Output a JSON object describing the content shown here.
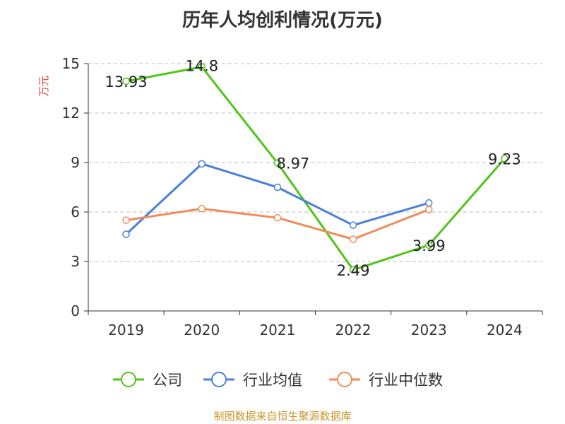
{
  "chart_data": {
    "type": "line",
    "title": "历年人均创利情况(万元)",
    "ylabel": "万元",
    "xlabel": "",
    "categories": [
      "2019",
      "2020",
      "2021",
      "2022",
      "2023",
      "2024"
    ],
    "ylim": [
      0,
      15
    ],
    "yticks": [
      0,
      3,
      6,
      9,
      12,
      15
    ],
    "grid": true,
    "legend_position": "bottom",
    "series": [
      {
        "name": "公司",
        "color": "#52c41a",
        "values": [
          13.93,
          14.8,
          8.97,
          2.49,
          3.99,
          9.23
        ],
        "labels": [
          "13.93",
          "14.8",
          "8.97",
          "2.49",
          "3.99",
          "9.23"
        ]
      },
      {
        "name": "行业均值",
        "color": "#4a7fdc",
        "values": [
          4.65,
          8.92,
          7.5,
          5.2,
          6.55,
          null
        ]
      },
      {
        "name": "行业中位数",
        "color": "#f08c5a",
        "values": [
          5.5,
          6.2,
          5.65,
          4.35,
          6.15,
          null
        ]
      }
    ]
  },
  "source": "制图数据来自恒生聚源数据库",
  "colors": {
    "axis": "#333333",
    "grid": "#bbbbbb",
    "ylabel": "#e8453c"
  }
}
